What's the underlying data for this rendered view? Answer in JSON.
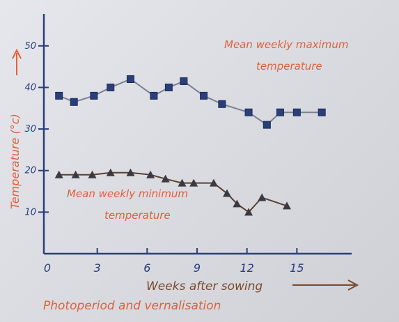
{
  "chart_data": {
    "type": "line",
    "title": "Photoperiod and vernalisation",
    "xlabel": "Weeks after sowing",
    "ylabel": "Temperature (°c)",
    "xlim": [
      0,
      18
    ],
    "ylim": [
      0,
      55
    ],
    "xticks": [
      "0",
      "3",
      "6",
      "9",
      "12",
      "15"
    ],
    "yticks": [
      "10",
      "20",
      "30",
      "40",
      "50"
    ],
    "grid": false,
    "series": [
      {
        "name": "Mean weekly maximum temperature",
        "marker": "square",
        "color": "#2a3f7a",
        "x": [
          0.7,
          1.6,
          2.8,
          3.8,
          5.0,
          6.4,
          7.3,
          8.2,
          9.4,
          10.5,
          12.1,
          13.2,
          14.0,
          15.0,
          16.5
        ],
        "y": [
          38,
          36.5,
          38,
          40,
          42,
          38,
          40,
          41.5,
          38,
          36,
          34,
          31,
          34,
          34,
          34
        ]
      },
      {
        "name": "Mean weekly minimum temperature",
        "marker": "triangle",
        "color": "#3a3a40",
        "x": [
          0.7,
          1.7,
          2.7,
          3.8,
          5.0,
          6.2,
          7.1,
          8.1,
          8.8,
          10.0,
          10.8,
          11.4,
          12.1,
          12.9,
          14.4
        ],
        "y": [
          19,
          19,
          19,
          19.5,
          19.5,
          19,
          18,
          17,
          17,
          17,
          14.5,
          12,
          10,
          13.5,
          11.5
        ]
      }
    ],
    "annotations": {
      "max_label_line1": "Mean weekly maximum",
      "max_label_line2": "temperature",
      "min_label_line1": "Mean weekly minimum",
      "min_label_line2": "temperature"
    },
    "colors": {
      "axis": "#2a3f7a",
      "annotation": "#e0603a",
      "max_line": "#7a8090",
      "min_line": "#5a4030"
    }
  }
}
